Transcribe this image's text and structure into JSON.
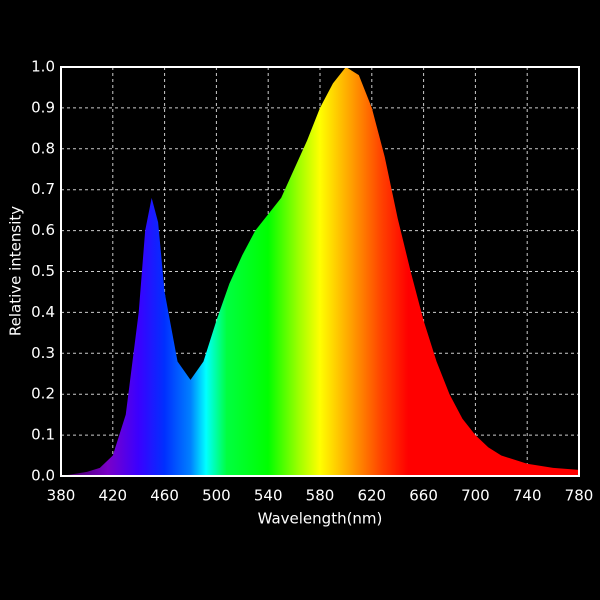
{
  "chart_data": {
    "type": "area",
    "xlabel": "Wavelength(nm)",
    "ylabel": "Relative intensity",
    "x": [
      380,
      390,
      400,
      410,
      420,
      430,
      440,
      445,
      450,
      455,
      460,
      470,
      480,
      490,
      500,
      510,
      520,
      530,
      540,
      550,
      560,
      570,
      580,
      590,
      600,
      610,
      620,
      630,
      640,
      650,
      660,
      670,
      680,
      690,
      700,
      710,
      720,
      730,
      740,
      760,
      780
    ],
    "y": [
      0.0,
      0.005,
      0.01,
      0.02,
      0.05,
      0.15,
      0.4,
      0.6,
      0.68,
      0.62,
      0.45,
      0.28,
      0.235,
      0.28,
      0.38,
      0.47,
      0.54,
      0.6,
      0.64,
      0.68,
      0.75,
      0.82,
      0.9,
      0.96,
      1.0,
      0.98,
      0.9,
      0.78,
      0.63,
      0.5,
      0.38,
      0.28,
      0.2,
      0.14,
      0.1,
      0.07,
      0.05,
      0.04,
      0.03,
      0.02,
      0.015
    ],
    "xlim": [
      380,
      780
    ],
    "ylim": [
      0,
      1
    ],
    "xticks": [
      380,
      420,
      460,
      500,
      540,
      580,
      620,
      660,
      700,
      740,
      780
    ],
    "yticks": [
      {
        "value": 0,
        "label": "0.0"
      },
      0.1,
      0.2,
      0.3,
      0.4,
      0.5,
      0.6,
      0.7,
      0.8,
      0.9,
      {
        "value": 1,
        "label": "1.0"
      }
    ],
    "grid": true
  }
}
